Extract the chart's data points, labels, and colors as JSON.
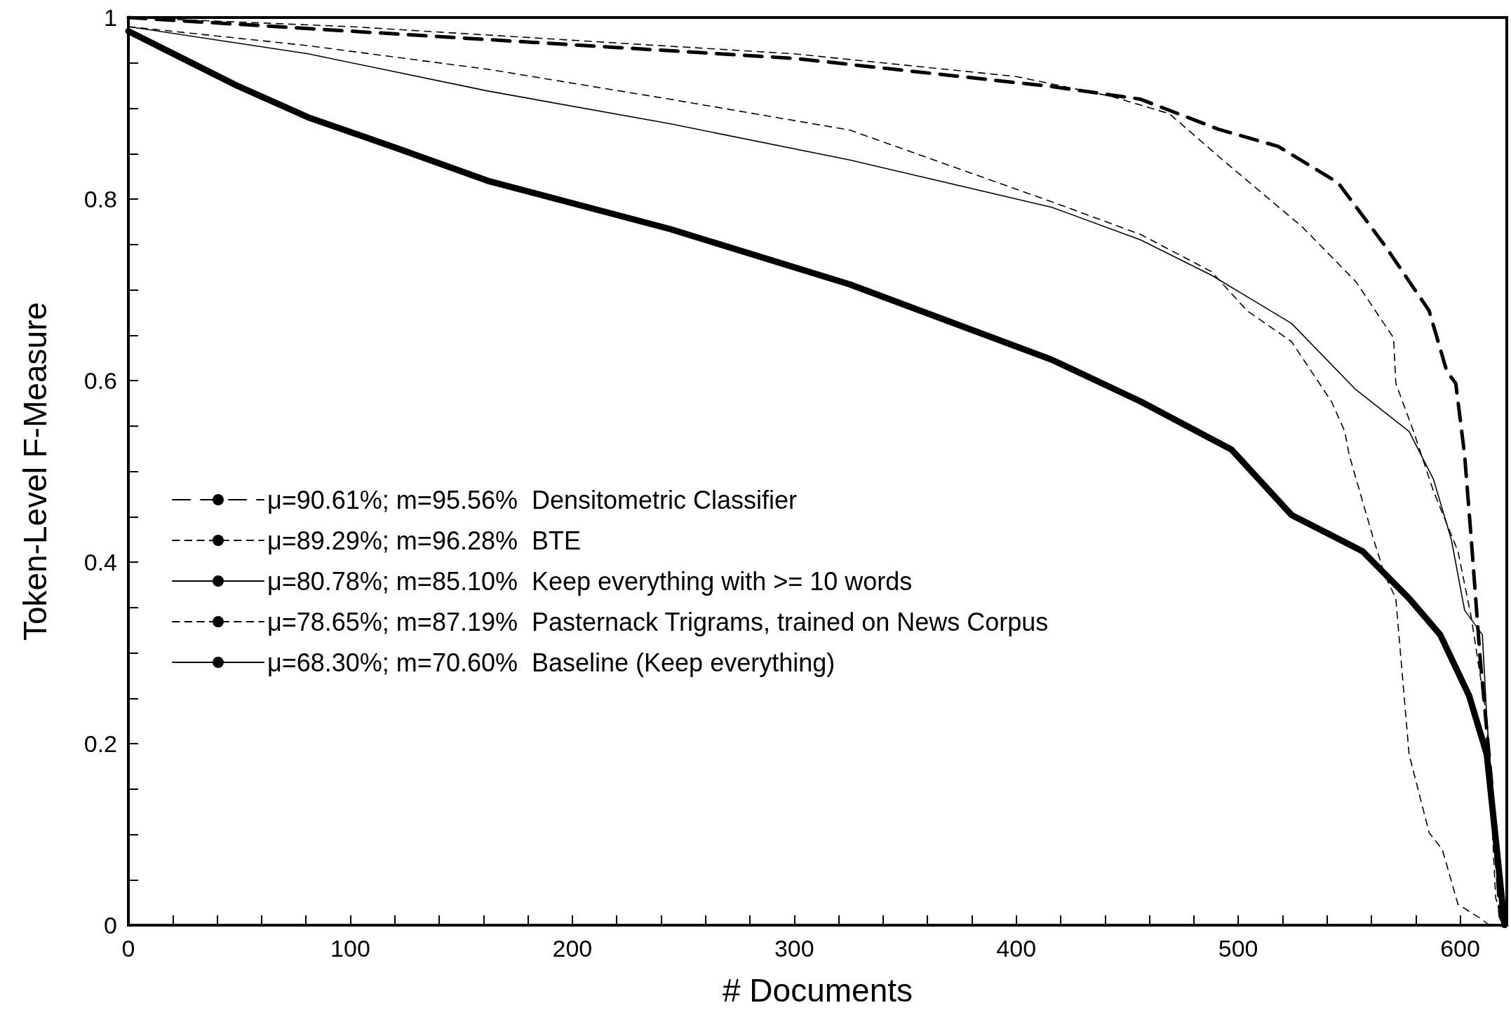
{
  "chart_data": {
    "type": "line",
    "xlabel": "# Documents",
    "ylabel": "Token-Level F-Measure",
    "xlim": [
      0,
      621
    ],
    "ylim": [
      0,
      1
    ],
    "xticks": [
      0,
      {
        "value": 20,
        "label": null
      },
      {
        "value": 40,
        "label": null
      },
      {
        "value": 60,
        "label": null
      },
      {
        "value": 80,
        "label": null
      },
      100,
      {
        "value": 120,
        "label": null
      },
      {
        "value": 140,
        "label": null
      },
      {
        "value": 160,
        "label": null
      },
      {
        "value": 180,
        "label": null
      },
      200,
      {
        "value": 220,
        "label": null
      },
      {
        "value": 240,
        "label": null
      },
      {
        "value": 260,
        "label": null
      },
      {
        "value": 280,
        "label": null
      },
      300,
      {
        "value": 320,
        "label": null
      },
      {
        "value": 340,
        "label": null
      },
      {
        "value": 360,
        "label": null
      },
      {
        "value": 380,
        "label": null
      },
      400,
      {
        "value": 420,
        "label": null
      },
      {
        "value": 440,
        "label": null
      },
      {
        "value": 460,
        "label": null
      },
      {
        "value": 480,
        "label": null
      },
      500,
      {
        "value": 520,
        "label": null
      },
      {
        "value": 540,
        "label": null
      },
      {
        "value": 560,
        "label": null
      },
      {
        "value": 580,
        "label": null
      },
      600,
      {
        "value": 620,
        "label": null
      }
    ],
    "yticks": [
      0,
      {
        "value": 0.05,
        "label": null
      },
      {
        "value": 0.1,
        "label": null
      },
      {
        "value": 0.15,
        "label": null
      },
      0.2,
      {
        "value": 0.25,
        "label": null
      },
      {
        "value": 0.3,
        "label": null
      },
      {
        "value": 0.35,
        "label": null
      },
      0.4,
      {
        "value": 0.45,
        "label": null
      },
      {
        "value": 0.5,
        "label": null
      },
      {
        "value": 0.55,
        "label": null
      },
      0.6,
      {
        "value": 0.65,
        "label": null
      },
      {
        "value": 0.7,
        "label": null
      },
      {
        "value": 0.75,
        "label": null
      },
      0.8,
      {
        "value": 0.85,
        "label": null
      },
      {
        "value": 0.9,
        "label": null
      },
      {
        "value": 0.95,
        "label": null
      },
      1
    ],
    "grid": false,
    "legend": "center left",
    "marker": "none",
    "series": [
      {
        "name": "μ=90.61%; m=95.56%  Densitometric Classifier",
        "color": "#000000",
        "line_style": "dashed",
        "x": [
          0,
          100,
          200,
          300,
          416,
          456,
          491,
          518,
          545,
          566,
          586,
          594,
          598,
          602,
          605,
          609,
          614,
          618,
          620
        ],
        "values": [
          1.0,
          0.985,
          0.97,
          0.955,
          0.924,
          0.91,
          0.877,
          0.858,
          0.818,
          0.749,
          0.677,
          0.61,
          0.597,
          0.518,
          0.425,
          0.294,
          0.161,
          0.01,
          0
        ]
      },
      {
        "name": "μ=89.29%; m=96.28%  BTE",
        "color": "#000000",
        "line_style": "dashed",
        "x": [
          0,
          100,
          200,
          300,
          400,
          443,
          469,
          494,
          529,
          553,
          570,
          571,
          579,
          588,
          599,
          605,
          612,
          616,
          620
        ],
        "values": [
          1.0,
          0.99,
          0.975,
          0.96,
          0.935,
          0.913,
          0.894,
          0.841,
          0.769,
          0.709,
          0.647,
          0.597,
          0.544,
          0.478,
          0.412,
          0.339,
          0.228,
          0.03,
          0
        ]
      },
      {
        "name": "μ=80.78%; m=85.10%  Keep everything with >= 10 words",
        "color": "#000000",
        "line_style": "solid",
        "x": [
          0,
          81,
          162,
          244,
          325,
          416,
          456,
          488,
          524,
          553,
          577,
          588,
          596,
          602,
          610,
          612,
          616,
          620
        ],
        "values": [
          0.99,
          0.96,
          0.919,
          0.883,
          0.843,
          0.791,
          0.755,
          0.716,
          0.663,
          0.59,
          0.544,
          0.491,
          0.425,
          0.347,
          0.32,
          0.228,
          0.095,
          0
        ]
      },
      {
        "name": "μ=78.65%; m=87.19%  Pasternack Trigrams, trained on News Corpus",
        "color": "#000000",
        "line_style": "dashed",
        "x": [
          0,
          81,
          162,
          244,
          325,
          416,
          456,
          488,
          504,
          524,
          542,
          548,
          550,
          561,
          566,
          571,
          577,
          586,
          592,
          599,
          610,
          613
        ],
        "values": [
          0.99,
          0.969,
          0.943,
          0.91,
          0.876,
          0.797,
          0.761,
          0.72,
          0.677,
          0.643,
          0.577,
          0.544,
          0.518,
          0.425,
          0.386,
          0.36,
          0.188,
          0.102,
          0.083,
          0.023,
          0.006,
          0
        ]
      },
      {
        "name": "μ=68.30%; m=70.60%  Baseline (Keep everything)",
        "color": "#000000",
        "line_style": "solid",
        "x": [
          0,
          48,
          81,
          121,
          162,
          244,
          325,
          416,
          456,
          497,
          524,
          556,
          577,
          591,
          604,
          612,
          616,
          620
        ],
        "values": [
          0.985,
          0.926,
          0.89,
          0.856,
          0.82,
          0.767,
          0.706,
          0.623,
          0.577,
          0.524,
          0.452,
          0.412,
          0.36,
          0.32,
          0.253,
          0.188,
          0.095,
          0
        ]
      }
    ]
  }
}
